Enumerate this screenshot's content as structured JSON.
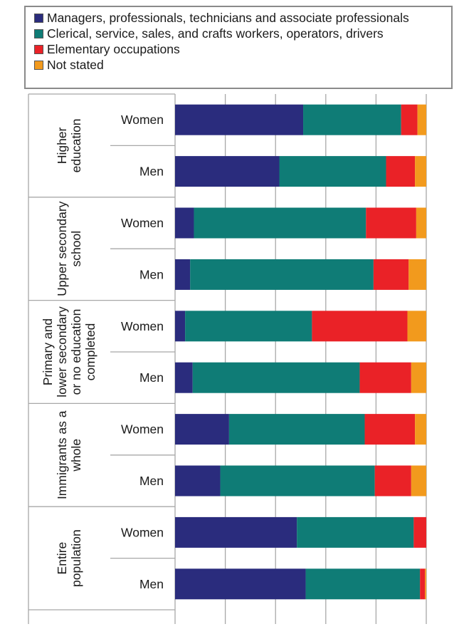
{
  "chart_data": {
    "type": "bar",
    "orientation": "horizontal",
    "stacked": true,
    "legend": {
      "placement": "top",
      "entries": [
        {
          "label": "Managers, professionals, technicians and associate professionals",
          "color": "#2a2c7d"
        },
        {
          "label": "Clerical, service, sales, and crafts workers, operators, drivers",
          "color": "#0f7c76"
        },
        {
          "label": "Elementary occupations",
          "color": "#ea2227"
        },
        {
          "label": "Not stated",
          "color": "#f29a1d"
        }
      ]
    },
    "groups": [
      {
        "label": "Higher education",
        "label_lines": [
          "Higher",
          "education"
        ],
        "bars": [
          "Women",
          "Men"
        ]
      },
      {
        "label": "Upper secondary school",
        "label_lines": [
          "Upper secondary",
          "school"
        ],
        "bars": [
          "Women",
          "Men"
        ]
      },
      {
        "label": "Primary and lower secondary or no education completed",
        "label_lines": [
          "Primary and",
          "lower secondary",
          "or no education",
          "completed"
        ],
        "bars": [
          "Women",
          "Men"
        ]
      },
      {
        "label": "Immigrants as a whole",
        "label_lines": [
          "Immigrants as a",
          "whole"
        ],
        "bars": [
          "Women",
          "Men"
        ]
      },
      {
        "label": "Entire population",
        "label_lines": [
          "Entire",
          "population"
        ],
        "bars": [
          "Women",
          "Men"
        ]
      }
    ],
    "categories": [
      "Higher education - Women",
      "Higher education - Men",
      "Upper secondary school - Women",
      "Upper secondary school - Men",
      "Primary and lower secondary or no education completed - Women",
      "Primary and lower secondary or no education completed - Men",
      "Immigrants as a whole - Women",
      "Immigrants as a whole - Men",
      "Entire population - Women",
      "Entire population - Men"
    ],
    "series": [
      {
        "name": "Managers, professionals, technicians and associate professionals",
        "values": [
          51,
          41.5,
          7.5,
          6,
          4,
          7,
          21.5,
          18,
          48.5,
          52
        ]
      },
      {
        "name": "Clerical, service, sales, and crafts workers, operators, drivers",
        "values": [
          39,
          42.5,
          68.5,
          73,
          50.5,
          66.5,
          54,
          61.5,
          46.5,
          45.5
        ]
      },
      {
        "name": "Elementary occupations",
        "values": [
          6.5,
          11.5,
          20,
          14,
          38,
          20.5,
          20,
          14.5,
          5,
          2
        ]
      },
      {
        "name": "Not stated",
        "values": [
          3.5,
          4.5,
          4,
          7,
          7.5,
          6,
          4.5,
          6,
          0,
          0.5
        ]
      }
    ],
    "xlim": [
      0,
      100
    ],
    "xticks": [
      "0 %",
      "20 %",
      "40 %",
      "60 %",
      "80 %",
      "100 %"
    ],
    "grid": true
  }
}
